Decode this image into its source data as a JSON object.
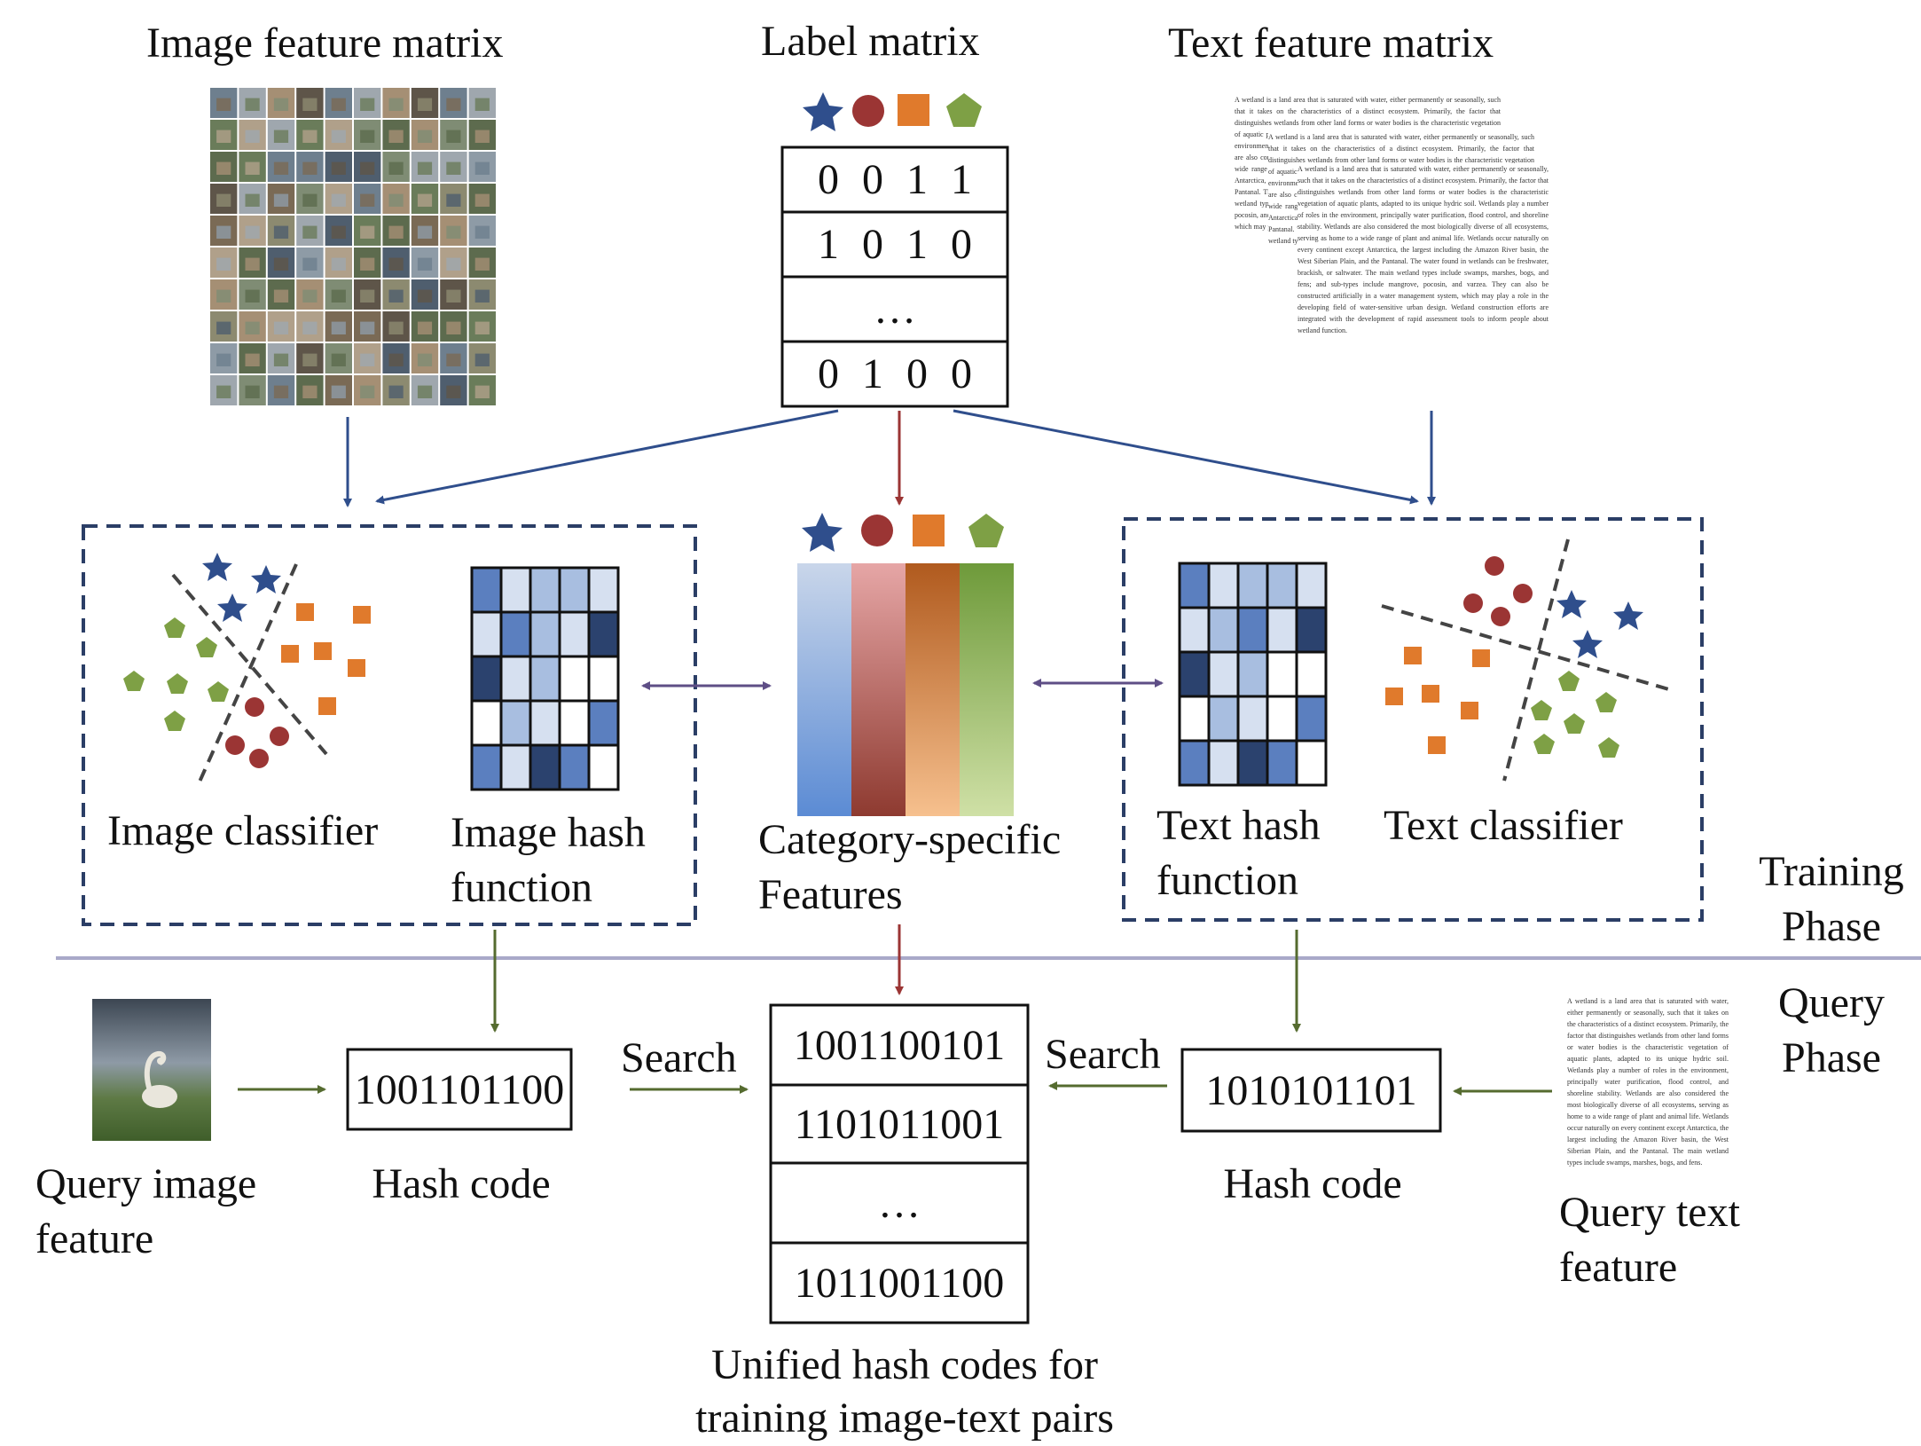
{
  "top": {
    "image_feature_label": "Image feature matrix",
    "label_matrix_label": "Label matrix",
    "text_feature_label": "Text feature matrix",
    "label_matrix_rows": [
      "0 0 1 1",
      "1 0 1 0",
      "…",
      "0 1 0 0"
    ],
    "label_shapes": [
      "star",
      "circle",
      "square",
      "pentagon"
    ]
  },
  "training": {
    "image_classifier_label": "Image classifier",
    "image_hash_label_1": "Image hash",
    "image_hash_label_2": "function",
    "category_label_1": "Category-specific",
    "category_label_2": "Features",
    "text_hash_label_1": "Text hash",
    "text_hash_label_2": "function",
    "text_classifier_label": "Text classifier",
    "phase_label_1": "Training",
    "phase_label_2": "Phase"
  },
  "query": {
    "phase_label_1": "Query",
    "phase_label_2": "Phase",
    "query_image_label_1": "Query image",
    "query_image_label_2": "feature",
    "image_hash_code": "1001101100",
    "image_hash_caption": "Hash code",
    "search_left": "Search",
    "search_right": "Search",
    "unified_codes": [
      "1001100101",
      "1101011001",
      "…",
      "1011001100"
    ],
    "unified_caption_1": "Unified hash codes for",
    "unified_caption_2": "training image-text pairs",
    "text_hash_code": "1010101101",
    "text_hash_caption": "Hash code",
    "query_text_label_1": "Query text",
    "query_text_label_2": "feature"
  },
  "colors": {
    "star": "#2F4E8C",
    "circle": "#9B3534",
    "square": "#E07A2C",
    "pentagon": "#7EA045",
    "arrow_blue": "#2F4E8C",
    "arrow_red": "#9B3534",
    "arrow_green": "#556B2F",
    "arrow_purple": "#5E4E86",
    "dashed_box": "#2B3E66",
    "divider": "#A9A9C9"
  }
}
